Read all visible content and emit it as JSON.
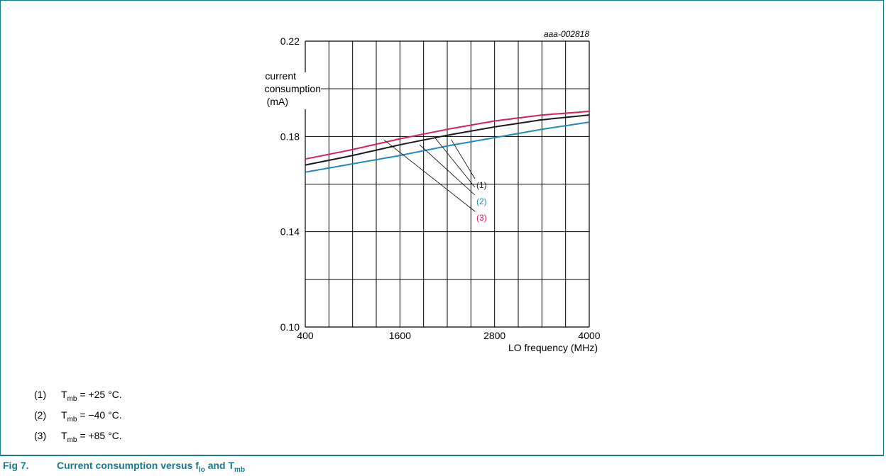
{
  "chart_id": "aaa-002818",
  "legend": [
    {
      "num": "(1)",
      "symbol": "T",
      "sub": "mb",
      "text": "= +25 °C."
    },
    {
      "num": "(2)",
      "symbol": "T",
      "sub": "mb",
      "text": "= −40 °C."
    },
    {
      "num": "(3)",
      "symbol": "T",
      "sub": "mb",
      "text": "= +85 °C."
    }
  ],
  "caption": {
    "fig": "Fig 7.",
    "text_a": "Current consumption versus f",
    "sub_a": "lo",
    "text_b": " and T",
    "sub_b": "mb"
  },
  "colors": {
    "frame": "#1a7a8c",
    "series1": "#1a1a1a",
    "series2": "#1f87bd",
    "series3": "#d61f5c"
  },
  "chart_data": {
    "type": "line",
    "title": "",
    "xlabel": "LO frequency (MHz)",
    "ylabel_lines": [
      "current",
      "consumption",
      "(mA)"
    ],
    "xlim": [
      400,
      4000
    ],
    "ylim": [
      0.1,
      0.22
    ],
    "x_ticks": [
      400,
      1600,
      2800,
      4000
    ],
    "y_ticks": [
      0.1,
      0.14,
      0.18,
      0.22
    ],
    "y_tick_labels": [
      "0.10",
      "0.14",
      "0.18",
      "0.22"
    ],
    "x_tick_labels": [
      "400",
      "1600",
      "2800",
      "4000"
    ],
    "grid": true,
    "series": [
      {
        "name": "(1)",
        "x": [
          400,
          1000,
          1600,
          2200,
          2800,
          3400,
          4000
        ],
        "values": [
          0.168,
          0.172,
          0.1765,
          0.1805,
          0.184,
          0.187,
          0.189
        ]
      },
      {
        "name": "(2)",
        "x": [
          400,
          1000,
          1600,
          2200,
          2800,
          3400,
          4000
        ],
        "values": [
          0.165,
          0.1685,
          0.172,
          0.176,
          0.1795,
          0.183,
          0.186
        ]
      },
      {
        "name": "(3)",
        "x": [
          400,
          1000,
          1600,
          2200,
          2800,
          3400,
          4000
        ],
        "values": [
          0.1705,
          0.1745,
          0.179,
          0.183,
          0.1865,
          0.189,
          0.1905
        ]
      }
    ]
  }
}
